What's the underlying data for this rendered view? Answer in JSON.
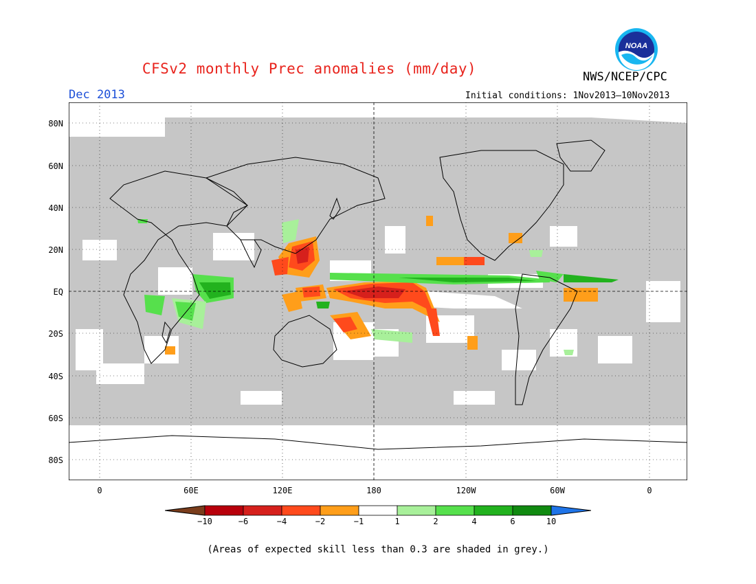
{
  "header": {
    "title": "CFSv2 monthly Prec anomalies (mm/day)",
    "org": "NWS/NCEP/CPC",
    "logo_text": "NOAA",
    "month": "Dec 2013",
    "initial_conditions": "Initial conditions: 1Nov2013–10Nov2013"
  },
  "map": {
    "lat_labels": [
      "80N",
      "60N",
      "40N",
      "20N",
      "EQ",
      "20S",
      "40S",
      "60S",
      "80S"
    ],
    "lon_labels": [
      "0",
      "60E",
      "120E",
      "180",
      "120W",
      "60W",
      "0"
    ],
    "grey_color": "#c6c6c6"
  },
  "colorbar": {
    "tick_labels": [
      "−10",
      "−6",
      "−4",
      "−2",
      "−1",
      "1",
      "2",
      "4",
      "6",
      "10"
    ],
    "colors": [
      "#7a3d1c",
      "#b8000b",
      "#d6201c",
      "#ff4a1c",
      "#ff9e1a",
      "#ffffff",
      "#a8f09a",
      "#56e04c",
      "#22b21e",
      "#108a10",
      "#1f74e8"
    ]
  },
  "footnote": "(Areas of expected skill less than 0.3 are shaded in grey.)"
}
